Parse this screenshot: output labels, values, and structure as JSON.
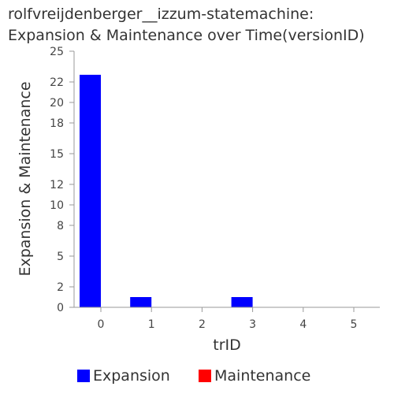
{
  "chart_data": {
    "type": "bar",
    "title_line1": "rolfvreijdenberger__izzum-statemachine:",
    "title_line2": "Expansion & Maintenance over Time(versionID)",
    "xlabel": "trID",
    "ylabel": "Expansion & Maintenance",
    "categories": [
      "0",
      "1",
      "2",
      "3",
      "4",
      "5"
    ],
    "series": [
      {
        "name": "Expansion",
        "color": "#0000ff",
        "values": [
          22.7,
          1,
          0,
          1,
          0,
          0
        ]
      },
      {
        "name": "Maintenance",
        "color": "#ff0000",
        "values": [
          0,
          0,
          0,
          0,
          0,
          0
        ]
      }
    ],
    "ylim": [
      0,
      25
    ],
    "yticks": [
      0,
      2,
      5,
      8,
      10,
      12,
      15,
      18,
      20,
      22,
      25
    ],
    "legend_position": "bottom"
  }
}
